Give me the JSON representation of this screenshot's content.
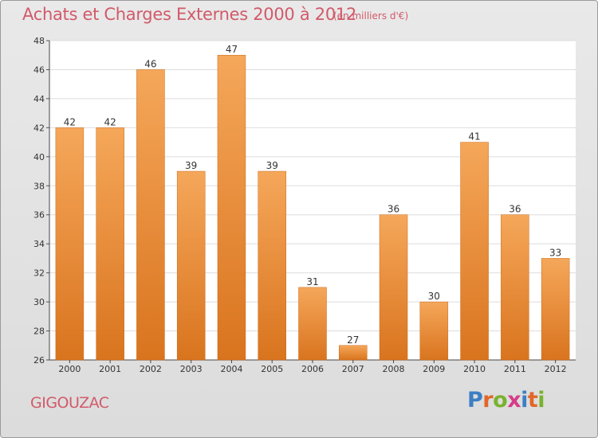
{
  "header": {
    "title": "Achats et Charges Externes 2000 à 2012",
    "subtitle": "(en milliers d'€)"
  },
  "footer": {
    "place": "GIGOUZAC",
    "brand": "Proxiti",
    "brand_colors": [
      "#3c7fc4",
      "#e0672a",
      "#79b22e",
      "#d63c8a",
      "#3c7fc4",
      "#e0672a",
      "#79b22e"
    ]
  },
  "colors": {
    "title": "#d15a6a",
    "bar_top": "#f5a75a",
    "bar_bottom": "#d9741e",
    "plot_bg": "#ffffff",
    "grid": "#dddddd"
  },
  "chart_data": {
    "type": "bar",
    "categories": [
      "2000",
      "2001",
      "2002",
      "2003",
      "2004",
      "2005",
      "2006",
      "2007",
      "2008",
      "2009",
      "2010",
      "2011",
      "2012"
    ],
    "values": [
      42,
      42,
      46,
      39,
      47,
      39,
      31,
      27,
      36,
      30,
      41,
      36,
      33
    ],
    "ylim": [
      26,
      48
    ],
    "yticks": [
      26,
      28,
      30,
      32,
      34,
      36,
      38,
      40,
      42,
      44,
      46,
      48
    ],
    "grid": true,
    "data_labels": true
  }
}
